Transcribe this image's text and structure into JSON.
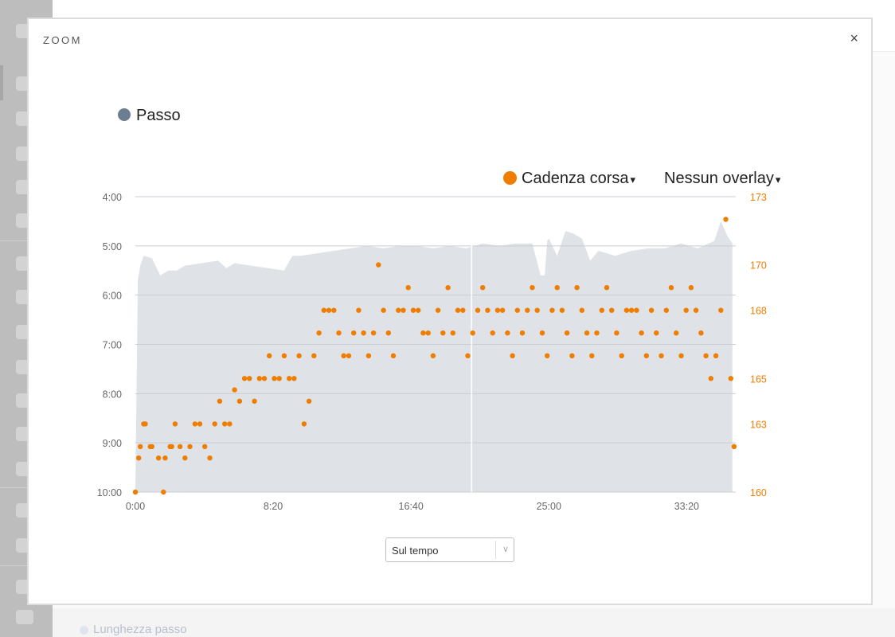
{
  "modal": {
    "title": "ZOOM",
    "close_label": "×"
  },
  "legend": {
    "primary_label": "Passo",
    "primary_color": "#6c7f92"
  },
  "dropdowns": {
    "cadence_label": "Cadenza corsa",
    "cadence_color": "#ef7d00",
    "overlay_label": "Nessun overlay",
    "caret": "▾"
  },
  "x_axis_select": {
    "value": "Sul tempo",
    "arrow": "∨"
  },
  "background": {
    "legend_label": "Lunghezza passo"
  },
  "chart_data": {
    "type": "area",
    "x_unit": "minutes",
    "xlim": [
      0,
      36.3
    ],
    "x_ticks": [
      0,
      8.333,
      16.667,
      25,
      33.333
    ],
    "x_tick_labels": [
      "0:00",
      "8:20",
      "16:40",
      "25:00",
      "33:20"
    ],
    "y_left_label_ticks": [
      "4:00",
      "5:00",
      "6:00",
      "7:00",
      "8:00",
      "9:00",
      "10:00"
    ],
    "y_left_range_min_per_km": [
      4,
      10
    ],
    "y_left_inverted": true,
    "y_right_ticks": [
      173,
      170,
      168,
      165,
      163,
      160
    ],
    "y_right_range": [
      160,
      173
    ],
    "grid": true,
    "series": [
      {
        "name": "Passo",
        "kind": "area",
        "color": "#dfe2e6",
        "x": [
          0,
          0.15,
          0.3,
          0.5,
          1,
          1.5,
          2,
          2.5,
          3,
          4,
          5,
          5.5,
          6,
          7,
          8,
          9,
          9.5,
          10,
          11,
          12,
          13,
          14,
          15,
          16,
          17,
          18,
          19,
          20,
          21,
          22,
          23,
          24,
          24.5,
          24.75,
          24.9,
          25,
          25.5,
          26,
          26.5,
          27,
          27.5,
          28,
          29,
          30,
          31,
          32,
          33,
          34,
          35,
          35.4,
          35.8,
          36.1
        ],
        "y": [
          10,
          5.7,
          5.4,
          5.2,
          5.25,
          5.6,
          5.5,
          5.5,
          5.4,
          5.35,
          5.3,
          5.45,
          5.35,
          5.4,
          5.45,
          5.5,
          5.2,
          5.2,
          5.15,
          5.1,
          5.05,
          5.0,
          5.05,
          5.0,
          5.0,
          5.05,
          5.0,
          5.05,
          4.95,
          5.0,
          4.95,
          4.95,
          5.6,
          5.6,
          4.9,
          4.85,
          5.2,
          4.7,
          4.75,
          4.85,
          5.3,
          5.1,
          5.2,
          5.1,
          5.05,
          5.05,
          4.95,
          5.05,
          4.9,
          4.5,
          4.8,
          4.95
        ]
      },
      {
        "name": "Cadenza corsa",
        "kind": "scatter",
        "color": "#ef7d00",
        "x": [
          0,
          0.2,
          0.3,
          0.5,
          0.6,
          0.9,
          1.0,
          1.4,
          1.7,
          1.8,
          2.1,
          2.2,
          2.4,
          2.7,
          3.0,
          3.3,
          3.6,
          3.9,
          4.2,
          4.5,
          4.8,
          5.1,
          5.4,
          5.7,
          6.0,
          6.3,
          6.6,
          6.9,
          7.2,
          7.5,
          7.8,
          8.1,
          8.4,
          8.7,
          9.0,
          9.3,
          9.6,
          9.9,
          10.2,
          10.5,
          10.8,
          11.1,
          11.4,
          11.7,
          12.0,
          12.3,
          12.6,
          12.9,
          13.2,
          13.5,
          13.8,
          14.1,
          14.4,
          14.7,
          15.0,
          15.3,
          15.6,
          15.9,
          16.2,
          16.5,
          16.8,
          17.1,
          17.4,
          17.7,
          18.0,
          18.3,
          18.6,
          18.9,
          19.2,
          19.5,
          19.8,
          20.1,
          20.4,
          20.7,
          21.0,
          21.3,
          21.6,
          21.9,
          22.2,
          22.5,
          22.8,
          23.1,
          23.4,
          23.7,
          24.0,
          24.3,
          24.6,
          24.9,
          25.2,
          25.5,
          25.8,
          26.1,
          26.4,
          26.7,
          27.0,
          27.3,
          27.6,
          27.9,
          28.2,
          28.5,
          28.8,
          29.1,
          29.4,
          29.7,
          30.0,
          30.3,
          30.6,
          30.9,
          31.2,
          31.5,
          31.8,
          32.1,
          32.4,
          32.7,
          33.0,
          33.3,
          33.6,
          33.9,
          34.2,
          34.5,
          34.8,
          35.1,
          35.4,
          35.7,
          36.0,
          36.2
        ],
        "y": [
          160,
          161.5,
          162,
          163,
          163,
          162,
          162,
          161.5,
          160,
          161.5,
          162,
          162,
          163,
          162,
          161.5,
          162,
          163,
          163,
          162,
          161.5,
          163,
          164,
          163,
          163,
          164.5,
          164,
          165,
          165,
          164,
          165,
          165,
          166,
          165,
          165,
          166,
          165,
          165,
          166,
          163,
          164,
          166,
          167,
          168,
          168,
          168,
          167,
          166,
          166,
          167,
          168,
          167,
          166,
          167,
          170,
          168,
          167,
          166,
          168,
          168,
          169,
          168,
          168,
          167,
          167,
          166,
          168,
          167,
          169,
          167,
          168,
          168,
          166,
          167,
          168,
          169,
          168,
          167,
          168,
          168,
          167,
          166,
          168,
          167,
          168,
          169,
          168,
          167,
          166,
          168,
          169,
          168,
          167,
          166,
          169,
          168,
          167,
          166,
          167,
          168,
          169,
          168,
          167,
          166,
          168,
          168,
          168,
          167,
          166,
          168,
          167,
          166,
          168,
          169,
          167,
          166,
          168,
          169,
          168,
          167,
          166,
          165,
          166,
          168,
          172,
          165,
          162
        ]
      }
    ]
  }
}
